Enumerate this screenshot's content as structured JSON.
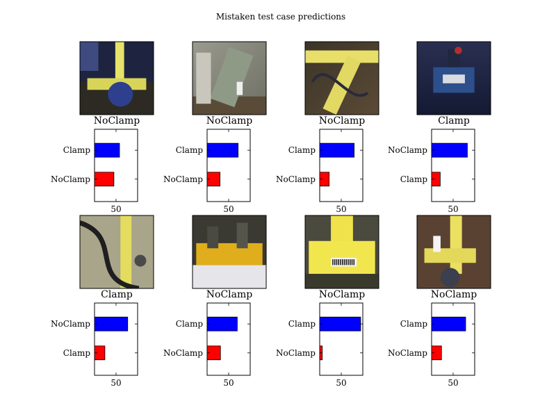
{
  "figure": {
    "title": "Mistaken test case predictions"
  },
  "chart_data": [
    {
      "type": "bar",
      "title": "NoClamp",
      "image": "photo-pipe-blue-clamp",
      "categories": [
        "NoClamp",
        "Clamp"
      ],
      "values": [
        45,
        58
      ],
      "colors": [
        "#ff0000",
        "#0000ff"
      ],
      "xlim": [
        0,
        100
      ],
      "xticks": [
        50
      ],
      "grid": false
    },
    {
      "type": "bar",
      "title": "NoClamp",
      "image": "photo-pipe-grey-bracket",
      "categories": [
        "NoClamp",
        "Clamp"
      ],
      "values": [
        30,
        72
      ],
      "colors": [
        "#ff0000",
        "#0000ff"
      ],
      "xlim": [
        0,
        100
      ],
      "xticks": [
        50
      ],
      "grid": false
    },
    {
      "type": "bar",
      "title": "NoClamp",
      "image": "photo-yellow-elbow",
      "categories": [
        "NoClamp",
        "Clamp"
      ],
      "values": [
        22,
        80
      ],
      "colors": [
        "#ff0000",
        "#0000ff"
      ],
      "xlim": [
        0,
        100
      ],
      "xticks": [
        50
      ],
      "grid": false
    },
    {
      "type": "bar",
      "title": "Clamp",
      "image": "photo-blue-fitting",
      "categories": [
        "Clamp",
        "NoClamp"
      ],
      "values": [
        20,
        83
      ],
      "colors": [
        "#ff0000",
        "#0000ff"
      ],
      "xlim": [
        0,
        100
      ],
      "xticks": [
        50
      ],
      "grid": false
    },
    {
      "type": "bar",
      "title": "Clamp",
      "image": "photo-yellow-pipe-hose",
      "categories": [
        "Clamp",
        "NoClamp"
      ],
      "values": [
        24,
        77
      ],
      "colors": [
        "#ff0000",
        "#0000ff"
      ],
      "xlim": [
        0,
        100
      ],
      "xticks": [
        50
      ],
      "grid": false
    },
    {
      "type": "bar",
      "title": "NoClamp",
      "image": "photo-yellow-pipe-sheet",
      "categories": [
        "NoClamp",
        "Clamp"
      ],
      "values": [
        31,
        70
      ],
      "colors": [
        "#ff0000",
        "#0000ff"
      ],
      "xlim": [
        0,
        100
      ],
      "xticks": [
        50
      ],
      "grid": false
    },
    {
      "type": "bar",
      "title": "NoClamp",
      "image": "photo-yellow-clamp-barcode",
      "categories": [
        "NoClamp",
        "Clamp"
      ],
      "values": [
        6,
        95
      ],
      "colors": [
        "#ff0000",
        "#0000ff"
      ],
      "xlim": [
        0,
        100
      ],
      "xticks": [
        50
      ],
      "grid": false
    },
    {
      "type": "bar",
      "title": "NoClamp",
      "image": "photo-yellow-tee-label",
      "categories": [
        "NoClamp",
        "Clamp"
      ],
      "values": [
        23,
        79
      ],
      "colors": [
        "#ff0000",
        "#0000ff"
      ],
      "xlim": [
        0,
        100
      ],
      "xticks": [
        50
      ],
      "grid": false
    }
  ]
}
